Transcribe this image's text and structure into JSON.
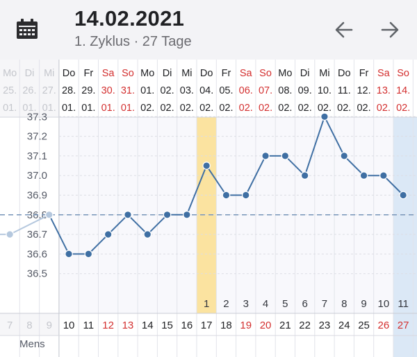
{
  "header": {
    "date": "14.02.2021",
    "subtitle": "1. Zyklus · 27 Tage",
    "calendar_icon": "calendar-icon",
    "prev_icon": "arrow-left-icon",
    "next_icon": "arrow-right-icon"
  },
  "colors": {
    "weekend": "#d32f2f",
    "line": "#3f6fa3",
    "faded": "#b5c8de",
    "ovulation_band": "#fbe3a0",
    "today_band": "#dbe8f6",
    "header_bg": "#f3f3f6",
    "threshold": "#7f9bbd"
  },
  "days": [
    {
      "wd": "Mo",
      "d": "25.",
      "m": "01.",
      "cd": "7",
      "weekend": false,
      "active": false,
      "temp": 36.7
    },
    {
      "wd": "Di",
      "d": "26.",
      "m": "01.",
      "cd": "8",
      "weekend": false,
      "active": false,
      "temp": null
    },
    {
      "wd": "Mi",
      "d": "27.",
      "m": "01.",
      "cd": "9",
      "weekend": false,
      "active": false,
      "temp": 36.8
    },
    {
      "wd": "Do",
      "d": "28.",
      "m": "01.",
      "cd": "10",
      "weekend": false,
      "active": true,
      "temp": 36.6
    },
    {
      "wd": "Fr",
      "d": "29.",
      "m": "01.",
      "cd": "11",
      "weekend": false,
      "active": true,
      "temp": 36.6
    },
    {
      "wd": "Sa",
      "d": "30.",
      "m": "01.",
      "cd": "12",
      "weekend": true,
      "active": true,
      "temp": 36.7
    },
    {
      "wd": "So",
      "d": "31.",
      "m": "01.",
      "cd": "13",
      "weekend": true,
      "active": true,
      "temp": 36.8
    },
    {
      "wd": "Mo",
      "d": "01.",
      "m": "02.",
      "cd": "14",
      "weekend": false,
      "active": true,
      "temp": 36.7
    },
    {
      "wd": "Di",
      "d": "02.",
      "m": "02.",
      "cd": "15",
      "weekend": false,
      "active": true,
      "temp": 36.8
    },
    {
      "wd": "Mi",
      "d": "03.",
      "m": "02.",
      "cd": "16",
      "weekend": false,
      "active": true,
      "temp": 36.8
    },
    {
      "wd": "Do",
      "d": "04.",
      "m": "02.",
      "cd": "17",
      "weekend": false,
      "active": true,
      "temp": 37.05
    },
    {
      "wd": "Fr",
      "d": "05.",
      "m": "02.",
      "cd": "18",
      "weekend": false,
      "active": true,
      "temp": 36.9
    },
    {
      "wd": "Sa",
      "d": "06.",
      "m": "02.",
      "cd": "19",
      "weekend": true,
      "active": true,
      "temp": 36.9
    },
    {
      "wd": "So",
      "d": "07.",
      "m": "02.",
      "cd": "20",
      "weekend": true,
      "active": true,
      "temp": 37.1
    },
    {
      "wd": "Mo",
      "d": "08.",
      "m": "02.",
      "cd": "21",
      "weekend": false,
      "active": true,
      "temp": 37.1
    },
    {
      "wd": "Di",
      "d": "09.",
      "m": "02.",
      "cd": "22",
      "weekend": false,
      "active": true,
      "temp": 37.0
    },
    {
      "wd": "Mi",
      "d": "10.",
      "m": "02.",
      "cd": "23",
      "weekend": false,
      "active": true,
      "temp": 37.3
    },
    {
      "wd": "Do",
      "d": "11.",
      "m": "02.",
      "cd": "24",
      "weekend": false,
      "active": true,
      "temp": 37.1
    },
    {
      "wd": "Fr",
      "d": "12.",
      "m": "02.",
      "cd": "25",
      "weekend": false,
      "active": true,
      "temp": 37.0
    },
    {
      "wd": "Sa",
      "d": "13.",
      "m": "02.",
      "cd": "26",
      "weekend": true,
      "active": true,
      "temp": 37.0
    },
    {
      "wd": "So",
      "d": "14.",
      "m": "02.",
      "cd": "27",
      "weekend": true,
      "active": true,
      "temp": 36.9
    }
  ],
  "post_ovulation_counts": [
    "1",
    "2",
    "3",
    "4",
    "5",
    "6",
    "7",
    "8",
    "9",
    "10",
    "11"
  ],
  "post_ovulation_start_index": 10,
  "ovulation_index": 10,
  "today_index": 20,
  "coverline": 36.8,
  "y_ticks": [
    "36.5",
    "36.6",
    "36.7",
    "36.8",
    "36.9",
    "37.0",
    "37.1",
    "37.2",
    "37.3"
  ],
  "row_labels": {
    "mens": "Mens"
  }
}
